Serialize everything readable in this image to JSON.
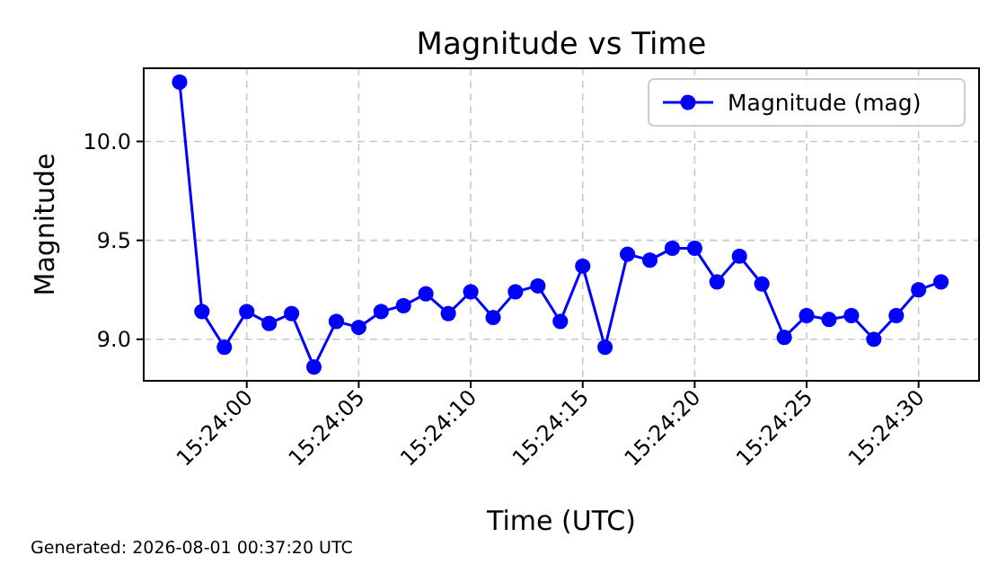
{
  "chart_data": {
    "type": "line",
    "title": "Magnitude vs Time",
    "xlabel": "Time (UTC)",
    "ylabel": "Magnitude",
    "annotations": [
      "Generated: 2026-08-01 00:37:20 UTC"
    ],
    "x": [
      15.399167,
      15.399444,
      15.399722,
      15.4,
      15.400278,
      15.400556,
      15.400833,
      15.401111,
      15.401389,
      15.401667,
      15.401944,
      15.402222,
      15.4025,
      15.402778,
      15.403056,
      15.403333,
      15.403611,
      15.403889,
      15.404167,
      15.404444,
      15.404722,
      15.405,
      15.405278,
      15.405556,
      15.405833,
      15.406111,
      15.406389,
      15.406667,
      15.406944,
      15.407222,
      15.4075,
      15.407778,
      15.408056,
      15.408333,
      15.408611
    ],
    "series": [
      {
        "name": "Magnitude (mag)",
        "color": "#0000ff",
        "values": [
          10.3,
          9.14,
          8.96,
          9.14,
          9.08,
          9.13,
          8.86,
          9.09,
          9.06,
          9.14,
          9.17,
          9.23,
          9.13,
          9.24,
          9.11,
          9.24,
          9.27,
          9.09,
          9.37,
          8.96,
          9.43,
          9.4,
          9.46,
          9.46,
          9.29,
          9.42,
          9.28,
          9.01,
          9.12,
          9.1,
          9.12,
          9.0,
          9.12,
          9.25,
          9.29
        ]
      }
    ],
    "xlim": [
      15.398722,
      15.409083
    ],
    "ylim": [
      8.79,
      10.37
    ],
    "xticks": [
      {
        "value": 15.4,
        "label": "15:24:00"
      },
      {
        "value": 15.401389,
        "label": "15:24:05"
      },
      {
        "value": 15.402778,
        "label": "15:24:10"
      },
      {
        "value": 15.404167,
        "label": "15:24:15"
      },
      {
        "value": 15.405556,
        "label": "15:24:20"
      },
      {
        "value": 15.406944,
        "label": "15:24:25"
      },
      {
        "value": 15.408333,
        "label": "15:24:30"
      }
    ],
    "yticks": [
      {
        "value": 9,
        "label": "9.0"
      },
      {
        "value": 9.5,
        "label": "9.5"
      },
      {
        "value": 10,
        "label": "10.0"
      }
    ],
    "grid": true,
    "legend": "top right",
    "marker": "circle",
    "line_style": "solid"
  }
}
